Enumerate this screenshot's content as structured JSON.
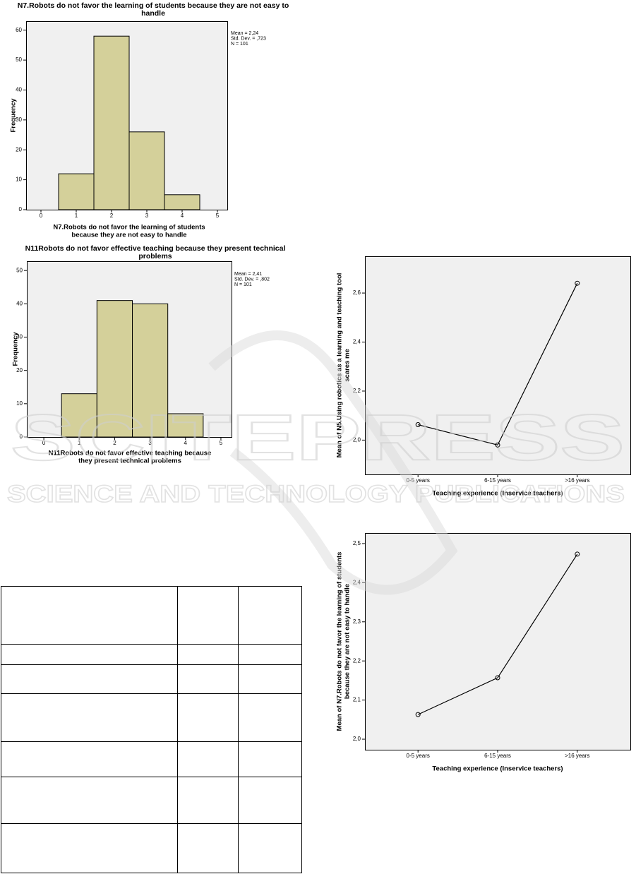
{
  "chart_data": [
    {
      "type": "histogram",
      "title": [
        "N7.Robots do not favor the learning of students because they are not easy to",
        "handle"
      ],
      "bins": [
        0.5,
        1.5,
        2.5,
        3.5,
        4.5
      ],
      "counts": [
        12,
        58,
        26,
        5
      ],
      "color": "#d4d09a",
      "xlim": [
        -0.42,
        5.28
      ],
      "ylim": [
        0,
        63
      ],
      "xticks": [
        0,
        1,
        2,
        3,
        4,
        5
      ],
      "yticks": [
        0,
        10,
        20,
        30,
        40,
        50,
        60
      ],
      "x_label": [
        "N7.Robots do not favor the learning of students",
        "because they are not easy to handle"
      ],
      "y_label": "Frequency",
      "stats": [
        "Mean = 2,24",
        "Std. Dev. = ,723",
        "N = 101"
      ]
    },
    {
      "type": "histogram",
      "title": [
        "N11Robots do not favor effective teaching because they present technical",
        "problems"
      ],
      "bins": [
        0.5,
        1.5,
        2.5,
        3.5,
        4.5
      ],
      "counts": [
        13,
        41,
        40,
        7
      ],
      "color": "#d4d09a",
      "xlim": [
        -0.48,
        5.3
      ],
      "ylim": [
        0,
        52.8
      ],
      "xticks": [
        0,
        1,
        2,
        3,
        4,
        5
      ],
      "yticks": [
        0,
        10,
        20,
        30,
        40,
        50
      ],
      "x_label": [
        "N11Robots do not favor effective teaching because",
        "they present technical problems"
      ],
      "y_label": "Frequency",
      "stats": [
        "Mean = 2,41",
        "Std. Dev. = ,802",
        "N = 101"
      ]
    },
    {
      "type": "line",
      "categories": [
        "0-5 years",
        "6-15 years",
        ">16 years"
      ],
      "values": [
        2.063,
        1.98,
        2.64
      ],
      "color": "#000000",
      "ylim": [
        1.86,
        2.75
      ],
      "yticks": [
        {
          "value": 2.0,
          "label": "2,0"
        },
        {
          "value": 2.2,
          "label": "2,2"
        },
        {
          "value": 2.4,
          "label": "2,4"
        },
        {
          "value": 2.6,
          "label": "2,6"
        }
      ],
      "x_label": "Teaching experience (Inservice teachers)",
      "y_label": [
        "Mean of N5.Using robotics as a learning and teaching tool",
        "scares me"
      ]
    },
    {
      "type": "line",
      "categories": [
        "0-5 years",
        "6-15 years",
        ">16 years"
      ],
      "values": [
        2.063,
        2.157,
        2.473
      ],
      "color": "#000000",
      "ylim": [
        1.973,
        2.527
      ],
      "yticks": [
        {
          "value": 2.0,
          "label": "2,0"
        },
        {
          "value": 2.1,
          "label": "2,1"
        },
        {
          "value": 2.2,
          "label": "2,2"
        },
        {
          "value": 2.3,
          "label": "2,3"
        },
        {
          "value": 2.4,
          "label": "2,4"
        },
        {
          "value": 2.5,
          "label": "2,5"
        }
      ],
      "x_label": "Teaching experience (Inservice teachers)",
      "y_label": [
        "Mean of N7.Robots do not favor the learning of students",
        "because they are not easy to handle"
      ]
    }
  ],
  "watermark": {
    "line1": "SCITEPRESS",
    "line2": "SCIENCE AND TECHNOLOGY PUBLICATIONS"
  }
}
